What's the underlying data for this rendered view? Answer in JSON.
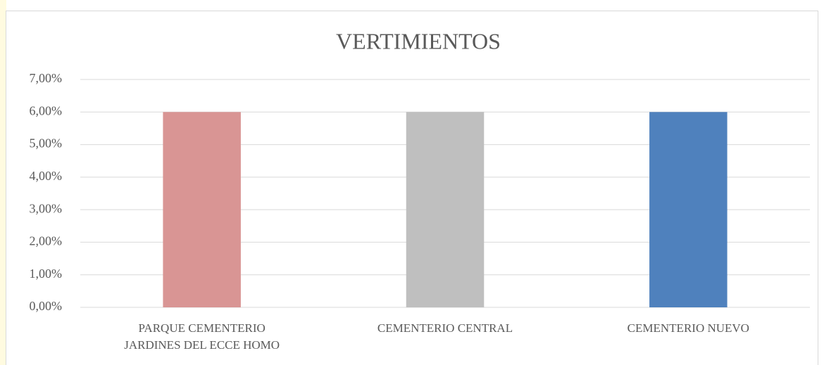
{
  "chart_data": {
    "type": "bar",
    "title": "VERTIMIENTOS",
    "categories": [
      "PARQUE CEMENTERIO JARDINES DEL ECCE HOMO",
      "CEMENTERIO CENTRAL",
      "CEMENTERIO NUEVO"
    ],
    "values": [
      6,
      6,
      6
    ],
    "colors": [
      "#d99594",
      "#bfbfbf",
      "#4f81bd"
    ],
    "ylim": [
      0,
      7
    ],
    "yticks": [
      {
        "value": 0,
        "label": "0,00%"
      },
      {
        "value": 1,
        "label": "1,00%"
      },
      {
        "value": 2,
        "label": "2,00%"
      },
      {
        "value": 3,
        "label": "3,00%"
      },
      {
        "value": 4,
        "label": "4,00%"
      },
      {
        "value": 5,
        "label": "5,00%"
      },
      {
        "value": 6,
        "label": "6,00%"
      },
      {
        "value": 7,
        "label": "7,00%"
      }
    ],
    "grid": true
  }
}
